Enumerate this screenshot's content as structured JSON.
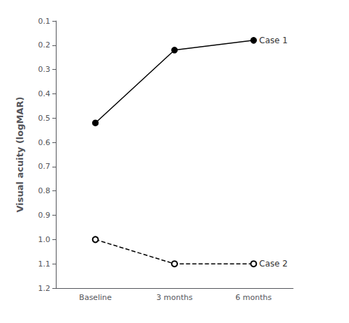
{
  "chart_data": {
    "type": "line",
    "categories": [
      "Baseline",
      "3 months",
      "6 months"
    ],
    "series": [
      {
        "name": "Case 1",
        "color": "#000000",
        "values": [
          0.52,
          0.22,
          0.18
        ],
        "line_style": "solid",
        "marker": "circle"
      },
      {
        "name": "Case 2",
        "color": "#000000",
        "values": [
          1.0,
          1.1,
          1.1
        ],
        "line_style": "dashed",
        "marker": "open_circle"
      }
    ],
    "ylabel": "Visual acuity (logMAR)",
    "ylim": [
      1.2,
      0.1
    ],
    "yticks": [
      0.1,
      0.2,
      0.3,
      0.4,
      0.5,
      0.6,
      0.7,
      0.8,
      0.9,
      {
        "value": 1.0,
        "label": "1.0"
      },
      1.1,
      1.2
    ],
    "grid": false
  }
}
